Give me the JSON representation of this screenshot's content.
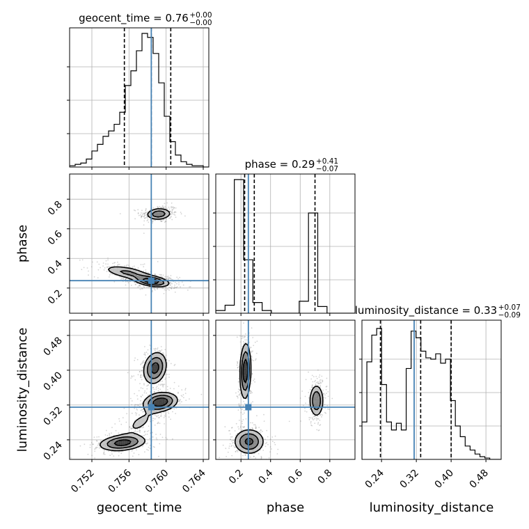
{
  "chart_data": {
    "type": "corner",
    "parameters": [
      "geocent_time",
      "phase",
      "luminosity_distance"
    ],
    "truth": {
      "geocent_time": 0.7584,
      "phase": 0.25,
      "luminosity_distance": 0.315
    },
    "titles": [
      {
        "param": "geocent_time",
        "label": "geocent_time",
        "median": "0.76",
        "plus": "+0.00",
        "minus": "−0.00"
      },
      {
        "param": "phase",
        "label": "phase",
        "median": "0.29",
        "plus": "+0.41",
        "minus": "−0.07"
      },
      {
        "param": "luminosity_distance",
        "label": "luminosity_distance",
        "median": "0.33",
        "plus": "+0.07",
        "minus": "−0.09"
      }
    ],
    "axes": {
      "geocent_time": {
        "range": [
          0.7496,
          0.7646
        ],
        "ticks": [
          0.752,
          0.756,
          0.76,
          0.764
        ],
        "tick_labels": [
          "0.752",
          "0.756",
          "0.760",
          "0.764"
        ]
      },
      "phase": {
        "range": [
          0.03,
          0.97
        ],
        "ticks": [
          0.2,
          0.4,
          0.6,
          0.8
        ],
        "tick_labels": [
          "0.2",
          "0.4",
          "0.6",
          "0.8"
        ]
      },
      "luminosity_distance": {
        "range": [
          0.195,
          0.515
        ],
        "ticks": [
          0.24,
          0.32,
          0.4,
          0.48
        ],
        "tick_labels": [
          "0.24",
          "0.32",
          "0.40",
          "0.48"
        ]
      }
    },
    "histograms": {
      "geocent_time": {
        "edges": [
          0.7496,
          0.7502,
          0.7508,
          0.7514,
          0.752,
          0.7526,
          0.7532,
          0.7538,
          0.7544,
          0.755,
          0.7556,
          0.7562,
          0.7568,
          0.7574,
          0.758,
          0.7586,
          0.7592,
          0.7598,
          0.7604,
          0.761,
          0.7616,
          0.7622,
          0.7628,
          0.7634,
          0.764,
          0.7646
        ],
        "counts": [
          0.01,
          0.02,
          0.03,
          0.06,
          0.12,
          0.17,
          0.23,
          0.27,
          0.32,
          0.41,
          0.61,
          0.72,
          0.87,
          1.0,
          0.97,
          0.85,
          0.63,
          0.38,
          0.19,
          0.09,
          0.04,
          0.02,
          0.01,
          0.01,
          0.0
        ],
        "quantiles": [
          0.7555,
          0.7584,
          0.7605
        ]
      },
      "phase": {
        "edges": [
          0.03,
          0.0926,
          0.1552,
          0.2178,
          0.2804,
          0.343,
          0.4056,
          0.4682,
          0.5308,
          0.5934,
          0.656,
          0.7186,
          0.7812,
          0.8438,
          0.9064,
          0.97
        ],
        "counts": [
          0.02,
          0.06,
          1.0,
          0.4,
          0.08,
          0.02,
          0.0,
          0.0,
          0.0,
          0.09,
          0.75,
          0.05,
          0.0,
          0.0,
          0.0
        ],
        "quantiles": [
          0.225,
          0.29,
          0.7
        ]
      },
      "luminosity_distance": {
        "edges": [
          0.195,
          0.2063,
          0.2176,
          0.2289,
          0.2402,
          0.2515,
          0.2628,
          0.2741,
          0.2854,
          0.2967,
          0.308,
          0.3193,
          0.3306,
          0.3419,
          0.3532,
          0.3645,
          0.3758,
          0.3871,
          0.3984,
          0.4097,
          0.421,
          0.4323,
          0.4436,
          0.4549,
          0.4662,
          0.4775,
          0.4888,
          0.5001,
          0.515
        ],
        "counts": [
          0.28,
          0.73,
          0.93,
          0.98,
          0.56,
          0.28,
          0.22,
          0.27,
          0.22,
          0.68,
          0.96,
          0.91,
          0.81,
          0.76,
          0.75,
          0.79,
          0.72,
          0.75,
          0.44,
          0.25,
          0.17,
          0.1,
          0.07,
          0.04,
          0.02,
          0.01,
          0.0,
          0.0
        ],
        "quantiles": [
          0.2375,
          0.33,
          0.4
        ]
      }
    },
    "densities": [
      {
        "x": "geocent_time",
        "y": "phase",
        "blobs": [
          {
            "cx": 0.7592,
            "cy": 0.7,
            "sx": 0.00082,
            "sy": 0.024,
            "rho": 0.1,
            "w": 0.45
          },
          {
            "cx": 0.7585,
            "cy": 0.245,
            "sx": 0.0011,
            "sy": 0.022,
            "rho": -0.4,
            "w": 0.6
          },
          {
            "cx": 0.7558,
            "cy": 0.305,
            "sx": 0.0016,
            "sy": 0.03,
            "rho": -0.55,
            "w": 0.35
          }
        ]
      },
      {
        "x": "geocent_time",
        "y": "luminosity_distance",
        "blobs": [
          {
            "cx": 0.7588,
            "cy": 0.405,
            "sx": 0.00075,
            "sy": 0.022,
            "rho": 0.2,
            "w": 0.6
          },
          {
            "cx": 0.7594,
            "cy": 0.327,
            "sx": 0.0011,
            "sy": 0.013,
            "rho": 0.2,
            "w": 0.65
          },
          {
            "cx": 0.7553,
            "cy": 0.233,
            "sx": 0.0015,
            "sy": 0.011,
            "rho": 0.25,
            "w": 0.6
          },
          {
            "cx": 0.7572,
            "cy": 0.28,
            "sx": 0.0012,
            "sy": 0.02,
            "rho": 0.6,
            "w": 0.2
          }
        ]
      },
      {
        "x": "phase",
        "y": "luminosity_distance",
        "blobs": [
          {
            "cx": 0.23,
            "cy": 0.398,
            "sx": 0.022,
            "sy": 0.038,
            "rho": 0.1,
            "w": 0.7
          },
          {
            "cx": 0.255,
            "cy": 0.236,
            "sx": 0.06,
            "sy": 0.017,
            "rho": 0.0,
            "w": 0.6
          },
          {
            "cx": 0.71,
            "cy": 0.33,
            "sx": 0.028,
            "sy": 0.022,
            "rho": 0.0,
            "w": 0.55
          }
        ]
      }
    ],
    "colors": {
      "truth": "#4682b4",
      "line": "#000000",
      "grid": "#b0b0b0",
      "scatter": "#808080"
    },
    "grid": true
  }
}
